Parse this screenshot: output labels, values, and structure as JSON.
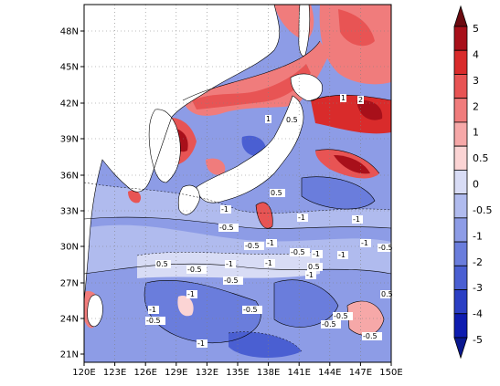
{
  "map": {
    "lon_labels": [
      "120E",
      "123E",
      "126E",
      "129E",
      "132E",
      "135E",
      "138E",
      "141E",
      "144E",
      "147E",
      "150E"
    ],
    "lat_labels": [
      "21N",
      "24N",
      "27N",
      "30N",
      "33N",
      "36N",
      "39N",
      "42N",
      "45N",
      "48N"
    ],
    "lon_range": [
      120,
      150
    ],
    "lat_range": [
      20,
      50
    ]
  },
  "colorbar": {
    "labels": [
      "5",
      "4",
      "3",
      "2",
      "1",
      "0.5",
      "0",
      "-0.5",
      "-1",
      "-2",
      "-3",
      "-4",
      "-5"
    ],
    "colors": [
      "#a8101a",
      "#d92b2b",
      "#e85454",
      "#f07c7c",
      "#f6a8a8",
      "#fbd4d4",
      "#d8dcf5",
      "#b0bbee",
      "#8d9ce6",
      "#6a7ddc",
      "#4a5fd2",
      "#2b3fc4",
      "#0e1cb0"
    ],
    "top_color": "#6b0a10",
    "bottom_color": "#0a1890"
  },
  "contour_labels": [
    "-1",
    "-0.5",
    "-1",
    "-1",
    "-0.5",
    "-1",
    "0.5",
    "-0.5",
    "-1",
    "-1",
    "-0.5",
    "-1",
    "-1",
    "-1",
    "-0.5",
    "-1",
    "-0.5",
    "-1",
    "0.5",
    "-0.5",
    "-1",
    "-0.5",
    "-1",
    "-0.5",
    "0.5",
    "1",
    "2",
    "-0.5",
    "-0.5",
    "0.5",
    "1",
    "0.5"
  ]
}
